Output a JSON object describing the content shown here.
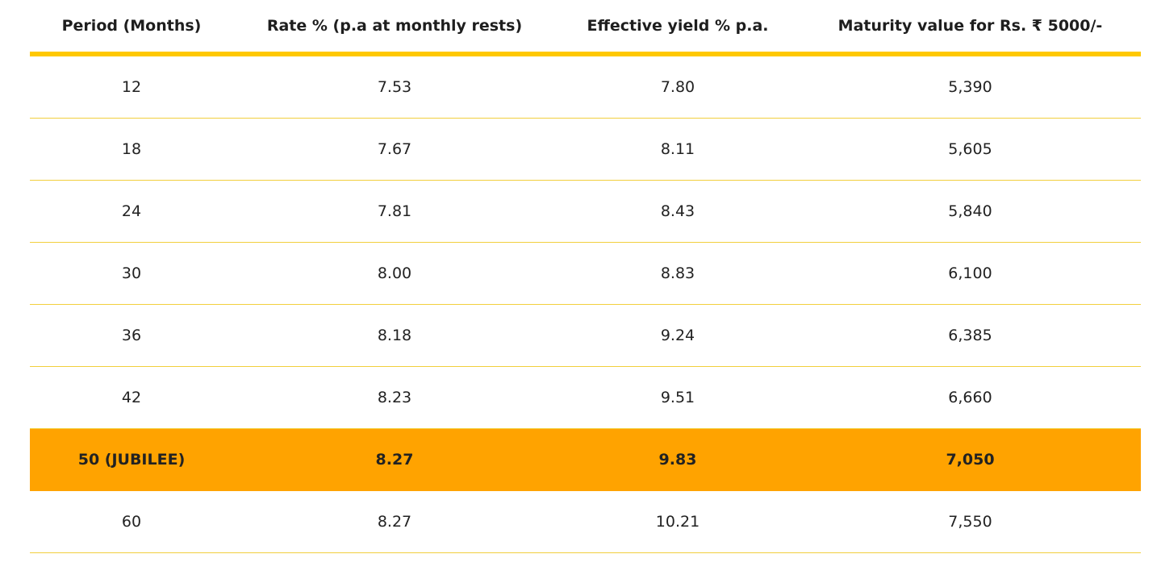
{
  "table": {
    "headers": [
      "Period (Months)",
      "Rate % (p.a at monthly rests)",
      "Effective yield % p.a.",
      "Maturity value for Rs. ₹ 5000/-"
    ],
    "rows": [
      {
        "period": "12",
        "rate": "7.53",
        "yield": "7.80",
        "maturity": "5,390"
      },
      {
        "period": "18",
        "rate": "7.67",
        "yield": "8.11",
        "maturity": "5,605"
      },
      {
        "period": "24",
        "rate": "7.81",
        "yield": "8.43",
        "maturity": "5,840"
      },
      {
        "period": "30",
        "rate": "8.00",
        "yield": "8.83",
        "maturity": "6,100"
      },
      {
        "period": "36",
        "rate": "8.18",
        "yield": "9.24",
        "maturity": "6,385"
      },
      {
        "period": "42",
        "rate": "8.23",
        "yield": "9.51",
        "maturity": "6,660"
      },
      {
        "period": "50 (JUBILEE)",
        "rate": "8.27",
        "yield": "9.83",
        "maturity": "7,050"
      },
      {
        "period": "60",
        "rate": "8.27",
        "yield": "10.21",
        "maturity": "7,550"
      }
    ],
    "highlighted_row": 6
  },
  "colors": {
    "header_rule": "#ffc800",
    "row_divider": "#f2cf3d",
    "highlight_bg": "#ffa300"
  }
}
